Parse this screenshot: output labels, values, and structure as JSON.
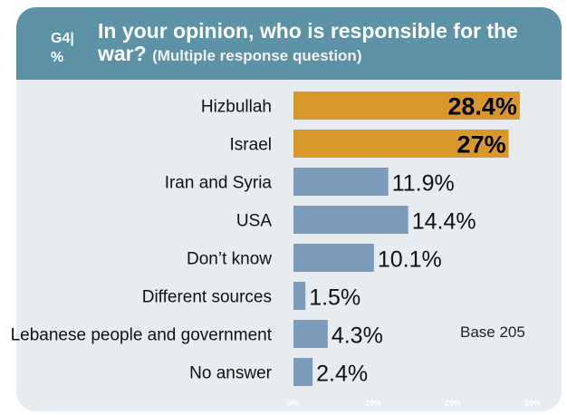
{
  "header": {
    "code_line1": "G4|",
    "code_line2": "%",
    "question": "In your opinion, who is responsible for the war?",
    "subtitle": "(Multiple response question)"
  },
  "chart_data": {
    "type": "bar",
    "orientation": "horizontal",
    "categories": [
      "Hizbullah",
      "Israel",
      "Iran and Syria",
      "USA",
      "Don’t know",
      "Different sources",
      "Lebanese people and government",
      "No answer"
    ],
    "values": [
      28.4,
      27,
      11.9,
      14.4,
      10.1,
      1.5,
      4.3,
      2.4
    ],
    "value_labels": [
      "28.4%",
      "27%",
      "11.9%",
      "14.4%",
      "10.1%",
      "1.5%",
      "4.3%",
      "2.4%"
    ],
    "highlight": [
      true,
      true,
      false,
      false,
      false,
      false,
      false,
      false
    ],
    "xlim": [
      0,
      30
    ],
    "xticks": [
      "0%",
      "10%",
      "20%",
      "30%"
    ],
    "note": "Base 205",
    "colors": {
      "highlight": "#d9982a",
      "normal": "#7d9cbc",
      "header": "#5d91a5",
      "background": "#e7ecf1"
    }
  }
}
